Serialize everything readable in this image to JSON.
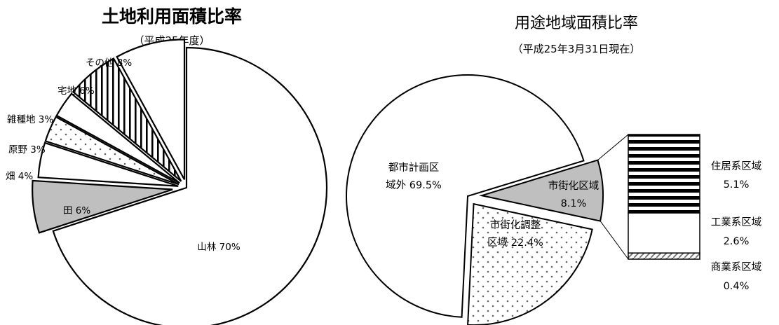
{
  "chart_data": [
    {
      "type": "pie",
      "title": "土地利用面積比率",
      "subtitle": "（平成25年度）",
      "slices": [
        {
          "name": "山林",
          "value": 70,
          "label": "山林 70%",
          "fill": "white"
        },
        {
          "name": "田",
          "value": 6,
          "label": "田 6%",
          "fill": "gray"
        },
        {
          "name": "畑",
          "value": 4,
          "label": "畑 4%",
          "fill": "white"
        },
        {
          "name": "原野",
          "value": 3,
          "label": "原野 3%",
          "fill": "dots"
        },
        {
          "name": "雑種地",
          "value": 3,
          "label": "雑種地 3%",
          "fill": "white"
        },
        {
          "name": "宅地",
          "value": 6,
          "label": "宅地 6%",
          "fill": "vstripes"
        },
        {
          "name": "その他",
          "value": 8,
          "label": "その他 8%",
          "fill": "white"
        }
      ]
    },
    {
      "type": "pie",
      "title": "用途地域面積比率",
      "subtitle": "（平成25年3月31日現在）",
      "slices": [
        {
          "name": "市街化区域",
          "value": 8.1,
          "label_lines": [
            "市街化区域",
            "8.1%"
          ],
          "fill": "gray"
        },
        {
          "name": "市街化調整区域",
          "value": 22.4,
          "label_lines": [
            "市街化調整",
            "区域 22.4%"
          ],
          "fill": "dots"
        },
        {
          "name": "都市計画区域外",
          "value": 69.5,
          "label_lines": [
            "都市計画区",
            "域外 69.5%"
          ],
          "fill": "white"
        }
      ],
      "breakdown": {
        "type": "stacked-bar",
        "parent": "市街化区域",
        "segments": [
          {
            "name": "住居系区域",
            "value": 5.1,
            "label_lines": [
              "住居系区域",
              "5.1%"
            ],
            "fill": "hstripes"
          },
          {
            "name": "工業系区域",
            "value": 2.6,
            "label_lines": [
              "工業系区域",
              "2.6%"
            ],
            "fill": "white"
          },
          {
            "name": "商業系区域",
            "value": 0.4,
            "label_lines": [
              "商業系区域",
              "0.4%"
            ],
            "fill": "diagonal"
          }
        ]
      }
    }
  ]
}
